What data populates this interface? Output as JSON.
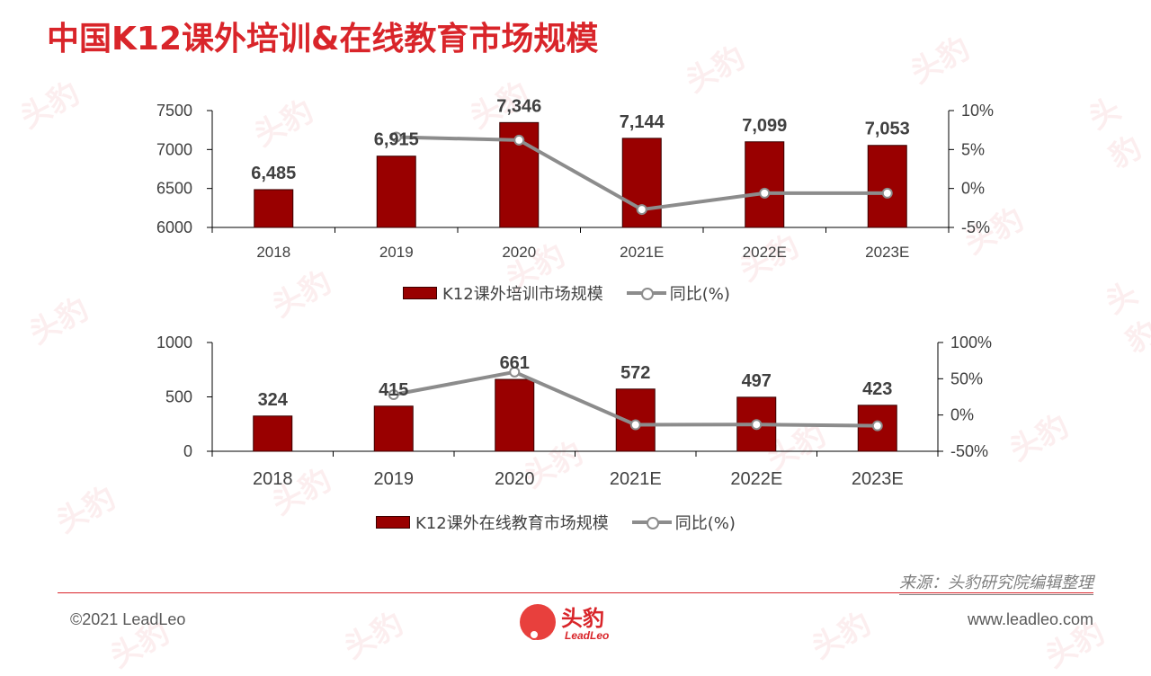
{
  "page": {
    "title": "中国K12课外培训&在线教育市场规模",
    "source": "来源：头豹研究院编辑整理",
    "copyright": "©2021 LeadLeo",
    "website": "www.leadleo.com",
    "logo_cn": "头豹",
    "logo_en": "LeadLeo",
    "watermark": "头豹",
    "accent_color": "#d9252a"
  },
  "chart_data": [
    {
      "type": "bar",
      "categories": [
        "2018",
        "2019",
        "2020",
        "2021E",
        "2022E",
        "2023E"
      ],
      "series": [
        {
          "name": "K12课外培训市场规模",
          "type": "bar",
          "values": [
            6485,
            6915,
            7346,
            7144,
            7099,
            7053
          ],
          "labels": [
            "6,485",
            "6,915",
            "7,346",
            "7,144",
            "7,099",
            "7,053"
          ],
          "color": "#990000"
        },
        {
          "name": "同比(%)",
          "type": "line",
          "axis": "right",
          "x": [
            "2019",
            "2020",
            "2021E",
            "2022E",
            "2023E"
          ],
          "values": [
            6.6,
            6.2,
            -2.7,
            -0.6,
            -0.6
          ],
          "color": "#8c8c8c"
        }
      ],
      "ylim": [
        6000,
        7500
      ],
      "yticks": [
        "6000",
        "6500",
        "7000",
        "7500"
      ],
      "y2lim": [
        -5,
        10
      ],
      "y2ticks": [
        "-5%",
        "0%",
        "5%",
        "10%"
      ],
      "legend_position": "bottom"
    },
    {
      "type": "bar",
      "categories": [
        "2018",
        "2019",
        "2020",
        "2021E",
        "2022E",
        "2023E"
      ],
      "series": [
        {
          "name": "K12课外在线教育市场规模",
          "type": "bar",
          "values": [
            324,
            415,
            661,
            572,
            497,
            423
          ],
          "labels": [
            "324",
            "415",
            "661",
            "572",
            "497",
            "423"
          ],
          "color": "#990000"
        },
        {
          "name": "同比(%)",
          "type": "line",
          "axis": "right",
          "x": [
            "2019",
            "2020",
            "2021E",
            "2022E",
            "2023E"
          ],
          "values": [
            28.1,
            59.3,
            -13.5,
            -13.1,
            -14.9
          ],
          "color": "#8c8c8c"
        }
      ],
      "ylim": [
        0,
        1000
      ],
      "yticks": [
        "0",
        "500",
        "1000"
      ],
      "y2lim": [
        -50,
        100
      ],
      "y2ticks": [
        "-50%",
        "0%",
        "50%",
        "100%"
      ],
      "legend_position": "bottom"
    }
  ]
}
